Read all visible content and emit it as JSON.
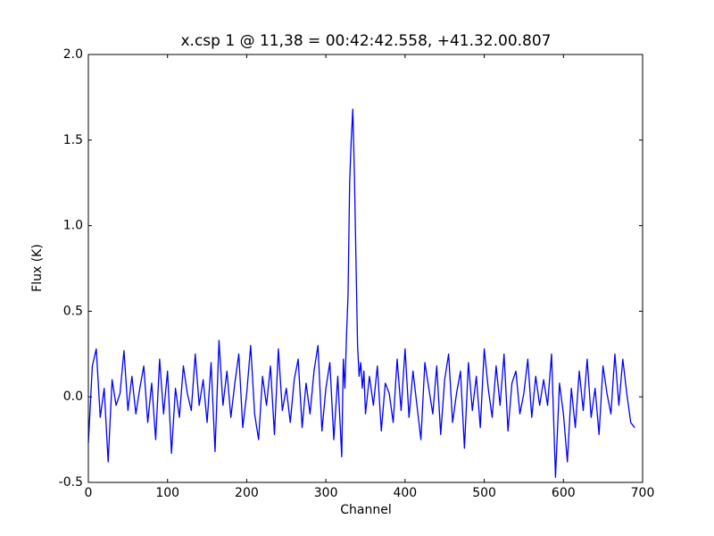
{
  "chart_data": {
    "type": "line",
    "title": "x.csp 1 @ 11,38 = 00:42:42.558, +41.32.00.807",
    "xlabel": "Channel",
    "ylabel": "Flux (K)",
    "color": "#0000ff",
    "x": [
      0,
      5,
      10,
      15,
      20,
      25,
      30,
      35,
      40,
      45,
      50,
      55,
      60,
      65,
      70,
      75,
      80,
      85,
      90,
      95,
      100,
      105,
      110,
      115,
      120,
      125,
      130,
      135,
      140,
      145,
      150,
      155,
      160,
      165,
      170,
      175,
      180,
      185,
      190,
      195,
      200,
      205,
      210,
      215,
      220,
      225,
      230,
      235,
      240,
      245,
      250,
      255,
      260,
      265,
      270,
      275,
      280,
      285,
      290,
      295,
      300,
      305,
      310,
      315,
      320,
      322,
      324,
      326,
      328,
      330,
      332,
      334,
      336,
      338,
      340,
      342,
      344,
      346,
      348,
      350,
      355,
      360,
      365,
      370,
      375,
      380,
      385,
      390,
      395,
      400,
      405,
      410,
      415,
      420,
      425,
      430,
      435,
      440,
      445,
      450,
      455,
      460,
      465,
      470,
      475,
      480,
      485,
      490,
      495,
      500,
      505,
      510,
      515,
      520,
      525,
      530,
      535,
      540,
      545,
      550,
      555,
      560,
      565,
      570,
      575,
      580,
      585,
      590,
      595,
      600,
      605,
      610,
      615,
      620,
      625,
      630,
      635,
      640,
      645,
      650,
      655,
      660,
      665,
      670,
      675,
      680,
      685,
      690
    ],
    "values": [
      -0.27,
      0.18,
      0.28,
      -0.12,
      0.05,
      -0.38,
      0.1,
      -0.05,
      0.02,
      0.27,
      -0.08,
      0.12,
      -0.1,
      0.05,
      0.18,
      -0.15,
      0.08,
      -0.25,
      0.22,
      -0.1,
      0.15,
      -0.33,
      0.05,
      -0.12,
      0.18,
      0.02,
      -0.08,
      0.25,
      -0.05,
      0.1,
      -0.15,
      0.2,
      -0.32,
      0.33,
      -0.05,
      0.15,
      -0.12,
      0.08,
      0.25,
      -0.18,
      0.02,
      0.3,
      -0.1,
      -0.25,
      0.12,
      -0.05,
      0.18,
      -0.22,
      0.28,
      -0.08,
      0.05,
      -0.15,
      0.1,
      0.22,
      -0.18,
      0.08,
      -0.1,
      0.15,
      0.3,
      -0.2,
      0.05,
      0.2,
      -0.25,
      0.12,
      -0.35,
      0.22,
      0.05,
      0.35,
      0.6,
      1.25,
      1.5,
      1.68,
      1.3,
      0.8,
      0.3,
      0.12,
      0.2,
      0.05,
      0.15,
      -0.1,
      0.12,
      -0.05,
      0.18,
      -0.2,
      0.08,
      0.02,
      -0.15,
      0.22,
      -0.08,
      0.28,
      -0.12,
      0.15,
      -0.05,
      -0.25,
      0.2,
      0.05,
      -0.1,
      0.18,
      -0.22,
      0.1,
      0.25,
      -0.15,
      0.02,
      0.15,
      -0.3,
      0.2,
      -0.08,
      0.12,
      -0.18,
      0.28,
      0.05,
      -0.12,
      0.18,
      -0.05,
      0.25,
      -0.2,
      0.08,
      0.15,
      -0.1,
      0.02,
      0.22,
      -0.12,
      0.12,
      -0.05,
      0.1,
      -0.05,
      0.25,
      -0.47,
      0.08,
      -0.1,
      -0.38,
      0.05,
      -0.18,
      0.15,
      -0.08,
      0.22,
      -0.12,
      0.05,
      -0.22,
      0.18,
      0.02,
      -0.1,
      0.25,
      -0.05,
      0.22,
      0.02,
      -0.15,
      -0.18
    ],
    "xlim": [
      0,
      700
    ],
    "xticks": [
      0,
      100,
      200,
      300,
      400,
      500,
      600,
      700
    ],
    "ylim": [
      -0.5,
      2.0
    ],
    "yticks": [
      -0.5,
      {
        "value": 0,
        "label": "0.0"
      },
      0.5,
      {
        "value": 1,
        "label": "1.0"
      },
      1.5,
      {
        "value": 2,
        "label": "2.0"
      }
    ]
  }
}
